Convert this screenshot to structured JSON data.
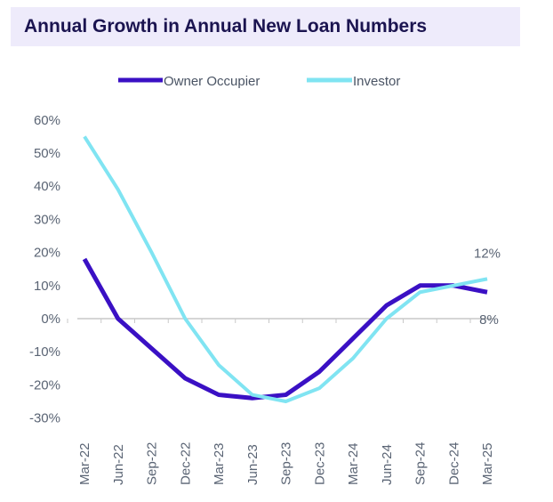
{
  "chart_data": {
    "type": "line",
    "title": "Annual Growth in Annual New Loan Numbers",
    "categories": [
      "Mar-22",
      "Jun-22",
      "Sep-22",
      "Dec-22",
      "Mar-23",
      "Jun-23",
      "Sep-23",
      "Dec-23",
      "Mar-24",
      "Jun-24",
      "Sep-24",
      "Dec-24",
      "Mar-25"
    ],
    "series": [
      {
        "name": "Owner Occupier",
        "color": "#3a10c4",
        "values": [
          18,
          0,
          -9,
          -18,
          -23,
          -24,
          -23,
          -16,
          -6,
          4,
          10,
          10,
          8
        ],
        "end_label": "8%"
      },
      {
        "name": "Investor",
        "color": "#80e4f2",
        "values": [
          55,
          39,
          20,
          0,
          -14,
          -23,
          -25,
          -21,
          -12,
          0,
          8,
          10,
          12
        ],
        "end_label": "12%"
      }
    ],
    "y_ticks": [
      "60%",
      "50%",
      "40%",
      "30%",
      "20%",
      "10%",
      "0%",
      "-10%",
      "-20%",
      "-30%"
    ],
    "ylim": [
      -30,
      60
    ],
    "grid": false,
    "legend": "top"
  }
}
